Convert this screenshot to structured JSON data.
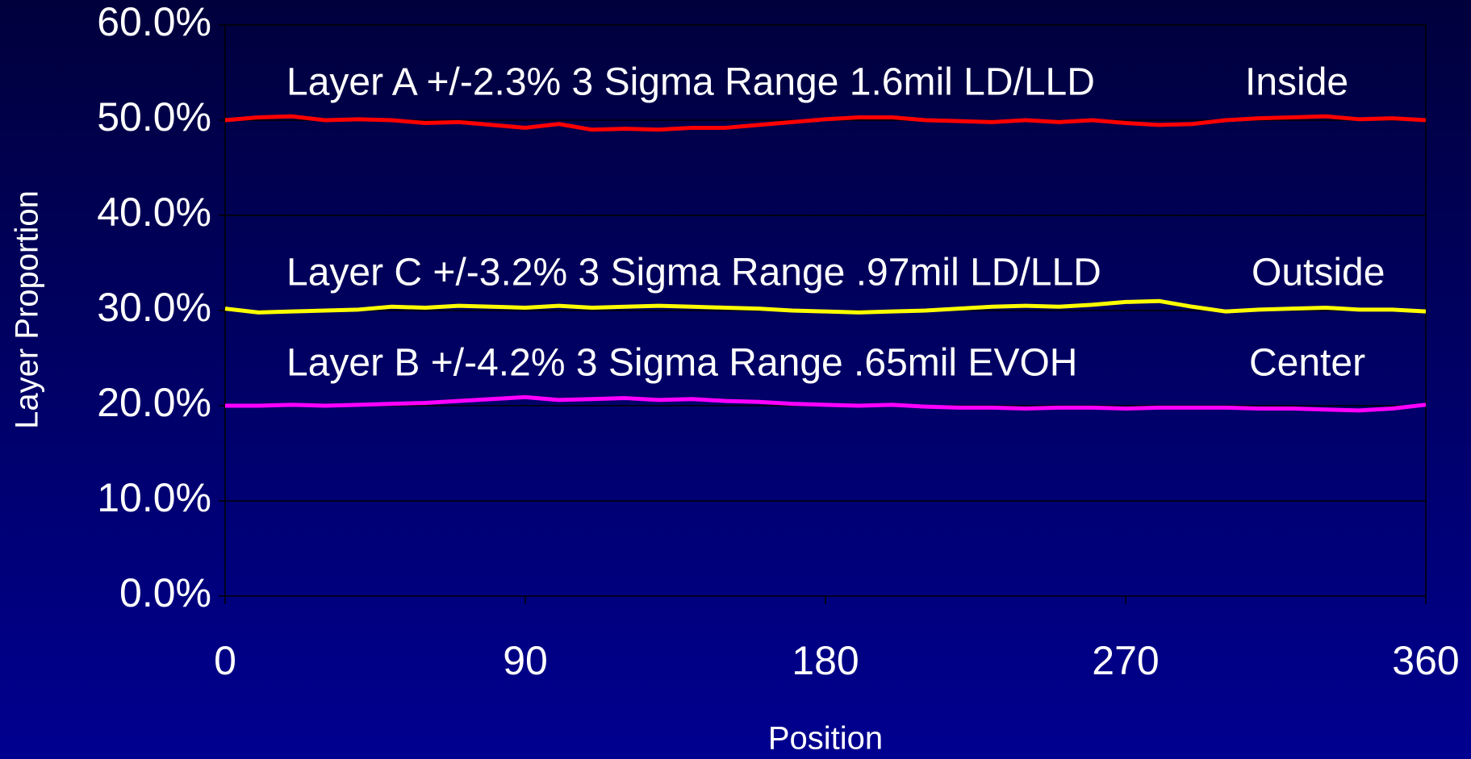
{
  "chart_data": {
    "type": "line",
    "xlabel": "Position",
    "ylabel": "Layer Proportion",
    "xlim": [
      0,
      360
    ],
    "xticks": [
      0,
      90,
      180,
      270,
      360
    ],
    "ylim": [
      0,
      60
    ],
    "yticks": [
      {
        "value": 0,
        "label": "0.0%"
      },
      {
        "value": 10,
        "label": "10.0%"
      },
      {
        "value": 20,
        "label": "20.0%"
      },
      {
        "value": 30,
        "label": "30.0%"
      },
      {
        "value": 40,
        "label": "40.0%"
      },
      {
        "value": 50,
        "label": "50.0%"
      },
      {
        "value": 60,
        "label": "60.0%"
      }
    ],
    "grid": true,
    "x": [
      0,
      10,
      20,
      30,
      40,
      50,
      60,
      70,
      80,
      90,
      100,
      110,
      120,
      130,
      140,
      150,
      160,
      170,
      180,
      190,
      200,
      210,
      220,
      230,
      240,
      250,
      260,
      270,
      280,
      290,
      300,
      310,
      320,
      330,
      340,
      350,
      360
    ],
    "series": [
      {
        "name": "Layer A",
        "color": "#ff0000",
        "values": [
          50.0,
          50.3,
          50.4,
          50.0,
          50.1,
          50.0,
          49.7,
          49.8,
          49.5,
          49.2,
          49.6,
          49.0,
          49.1,
          49.0,
          49.2,
          49.2,
          49.5,
          49.8,
          50.1,
          50.3,
          50.3,
          50.0,
          49.9,
          49.8,
          50.0,
          49.8,
          50.0,
          49.7,
          49.5,
          49.6,
          50.0,
          50.2,
          50.3,
          50.4,
          50.1,
          50.2,
          50.0
        ]
      },
      {
        "name": "Layer C",
        "color": "#ffff00",
        "values": [
          30.2,
          29.8,
          29.9,
          30.0,
          30.1,
          30.4,
          30.3,
          30.5,
          30.4,
          30.3,
          30.5,
          30.3,
          30.4,
          30.5,
          30.4,
          30.3,
          30.2,
          30.0,
          29.9,
          29.8,
          29.9,
          30.0,
          30.2,
          30.4,
          30.5,
          30.4,
          30.6,
          30.9,
          31.0,
          30.4,
          29.9,
          30.1,
          30.2,
          30.3,
          30.1,
          30.1,
          29.9
        ]
      },
      {
        "name": "Layer B",
        "color": "#ff00ff",
        "values": [
          20.0,
          20.0,
          20.1,
          20.0,
          20.1,
          20.2,
          20.3,
          20.5,
          20.7,
          20.9,
          20.6,
          20.7,
          20.8,
          20.6,
          20.7,
          20.5,
          20.4,
          20.2,
          20.1,
          20.0,
          20.1,
          19.9,
          19.8,
          19.8,
          19.7,
          19.8,
          19.8,
          19.7,
          19.8,
          19.8,
          19.8,
          19.7,
          19.7,
          19.6,
          19.5,
          19.7,
          20.1
        ]
      }
    ],
    "annotations": [
      "Layer A  +/-2.3% 3 Sigma Range 1.6mil LD/LLD",
      "Inside",
      "Layer C  +/-3.2% 3 Sigma Range .97mil LD/LLD",
      "Outside",
      "Layer B  +/-4.2% 3 Sigma Range .65mil EVOH",
      "Center"
    ]
  }
}
